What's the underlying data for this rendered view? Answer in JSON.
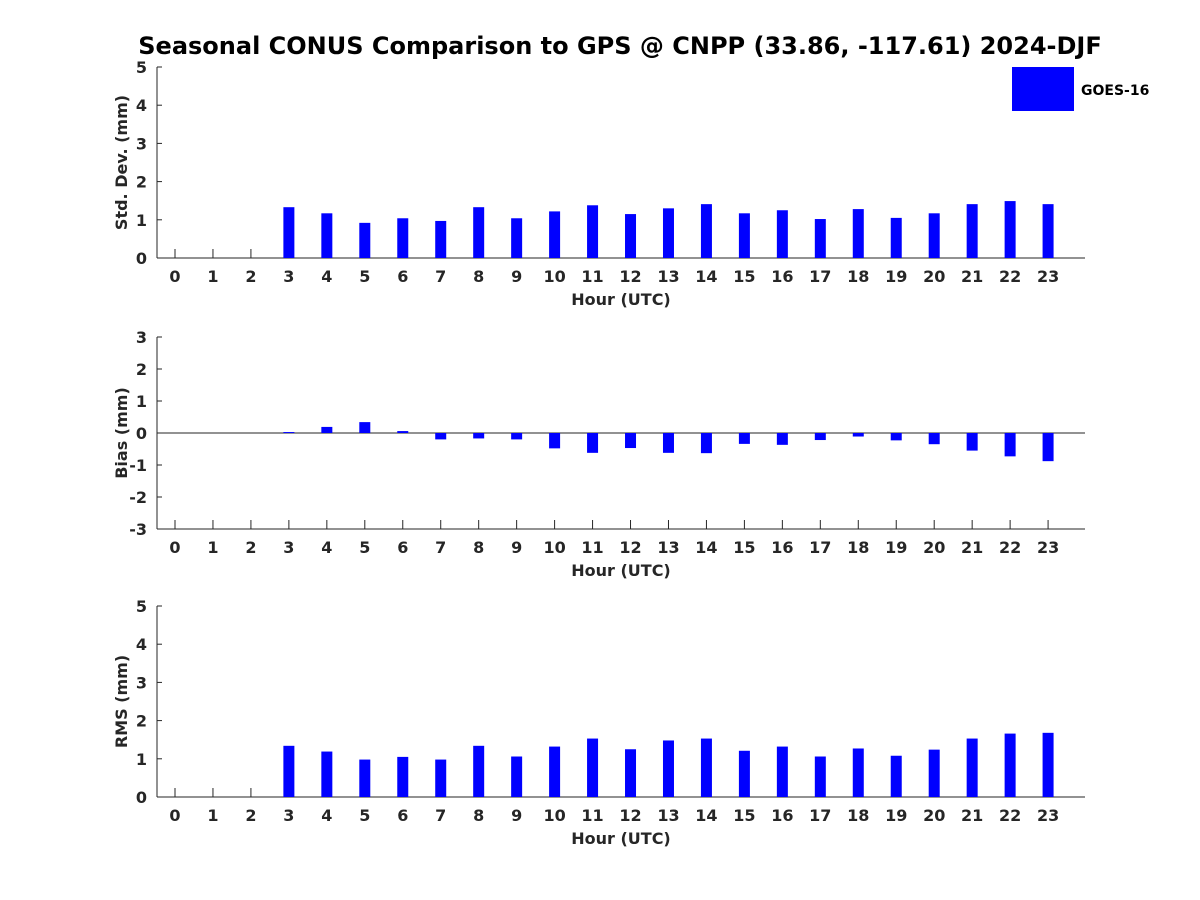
{
  "figure": {
    "title": "Seasonal CONUS Comparison to GPS @ CNPP (33.86, -117.61) 2024-DJF",
    "bar_color": "#0000ff"
  },
  "legend": {
    "entry": "GOES-16",
    "placement": "top-right"
  },
  "chart_data": [
    {
      "type": "bar",
      "xlabel": "Hour (UTC)",
      "ylabel": "Std. Dev. (mm)",
      "ylim": [
        0,
        5
      ],
      "yticks": [
        0,
        1,
        2,
        3,
        4,
        5
      ],
      "categories": [
        "0",
        "1",
        "2",
        "3",
        "4",
        "5",
        "6",
        "7",
        "8",
        "9",
        "10",
        "11",
        "12",
        "13",
        "14",
        "15",
        "16",
        "17",
        "18",
        "19",
        "20",
        "21",
        "22",
        "23"
      ],
      "series": [
        {
          "name": "GOES-16",
          "values": [
            null,
            null,
            null,
            1.33,
            1.17,
            0.92,
            1.04,
            0.97,
            1.33,
            1.04,
            1.22,
            1.38,
            1.15,
            1.3,
            1.41,
            1.17,
            1.25,
            1.02,
            1.28,
            1.05,
            1.17,
            1.41,
            1.49,
            1.41
          ]
        }
      ],
      "grid": false
    },
    {
      "type": "bar",
      "xlabel": "Hour (UTC)",
      "ylabel": "Bias (mm)",
      "ylim": [
        -3,
        3
      ],
      "yticks": [
        -3,
        -2,
        -1,
        0,
        1,
        2,
        3
      ],
      "categories": [
        "0",
        "1",
        "2",
        "3",
        "4",
        "5",
        "6",
        "7",
        "8",
        "9",
        "10",
        "11",
        "12",
        "13",
        "14",
        "15",
        "16",
        "17",
        "18",
        "19",
        "20",
        "21",
        "22",
        "23"
      ],
      "series": [
        {
          "name": "GOES-16",
          "values": [
            null,
            null,
            null,
            0.03,
            0.19,
            0.34,
            0.06,
            -0.2,
            -0.17,
            -0.2,
            -0.48,
            -0.62,
            -0.47,
            -0.62,
            -0.63,
            -0.34,
            -0.37,
            -0.22,
            -0.11,
            -0.23,
            -0.35,
            -0.55,
            -0.73,
            -0.88
          ]
        }
      ],
      "grid": false
    },
    {
      "type": "bar",
      "xlabel": "Hour (UTC)",
      "ylabel": "RMS (mm)",
      "ylim": [
        0,
        5
      ],
      "yticks": [
        0,
        1,
        2,
        3,
        4,
        5
      ],
      "categories": [
        "0",
        "1",
        "2",
        "3",
        "4",
        "5",
        "6",
        "7",
        "8",
        "9",
        "10",
        "11",
        "12",
        "13",
        "14",
        "15",
        "16",
        "17",
        "18",
        "19",
        "20",
        "21",
        "22",
        "23"
      ],
      "series": [
        {
          "name": "GOES-16",
          "values": [
            null,
            null,
            null,
            1.34,
            1.19,
            0.98,
            1.05,
            0.98,
            1.34,
            1.06,
            1.32,
            1.53,
            1.25,
            1.48,
            1.53,
            1.21,
            1.32,
            1.06,
            1.27,
            1.08,
            1.24,
            1.53,
            1.66,
            1.68
          ]
        }
      ],
      "grid": false
    }
  ]
}
